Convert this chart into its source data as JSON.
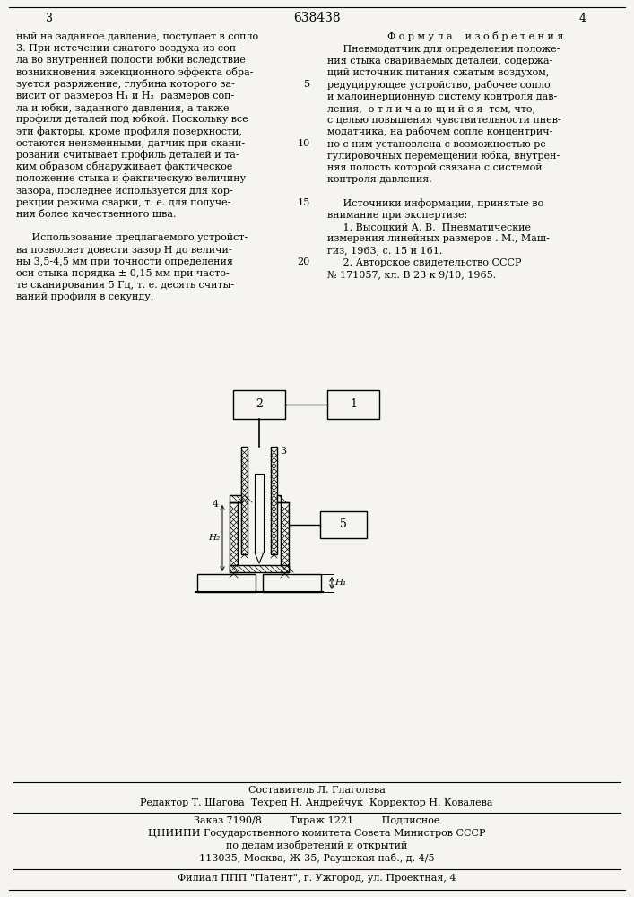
{
  "bg_color": "#f5f4f0",
  "title_number": "638438",
  "page_numbers": [
    "3",
    "4"
  ],
  "left_text": [
    "ный на заданное давление, поступает в сопло",
    "3. При истечении сжатого воздуха из соп-",
    "ла во внутренней полости юбки вследствие",
    "возникновения эжекционного эффекта обра-",
    "зуется разряжение, глубина которого за-",
    "висит от размеров H₁ и H₂  размеров соп-",
    "ла и юбки, заданного давления, а также",
    "профиля деталей под юбкой. Поскольку все",
    "эти факторы, кроме профиля поверхности,",
    "остаются неизменными, датчик при скани-",
    "ровании считывает профиль деталей и та-",
    "ким образом обнаруживает фактическое",
    "положение стыка и фактическую величину",
    "зазора, последнее используется для кор-",
    "рекции режима сварки, т. е. для получе-",
    "ния более качественного шва.",
    "",
    "     Использование предлагаемого устройст-",
    "ва позволяет довести зазор H до величи-",
    "ны 3,5-4,5 мм при точности определения",
    "оси стыка порядка ± 0,15 мм при часто-",
    "те сканирования 5 Гц, т. е. десять считы-",
    "ваний профиля в секунду."
  ],
  "right_heading": "Ф о р м у л а    и з о б р е т е н и я",
  "right_text": [
    "     Пневмодатчик для определения положе-",
    "ния стыка свариваемых деталей, содержа-",
    "щий источник питания сжатым воздухом,",
    "редуцирующее устройство, рабочее сопло",
    "и малоинерционную систему контроля дав-",
    "ления,  о т л и ч а ю щ и й с я  тем, что,",
    "с целью повышения чувствительности пнев-",
    "модатчика, на рабочем сопле концентрич-",
    "но с ним установлена с возможностью ре-",
    "гулировочных перемещений юбка, внутрен-",
    "няя полость которой связана с системой",
    "контроля давления.",
    "",
    "     Источники информации, принятые во",
    "внимание при экспертизе:",
    "     1. Высоцкий А. В.  Пневматические",
    "измерения линейных размеров . М., Маш-",
    "гиз, 1963, с. 15 и 161.",
    "     2. Авторское свидетельство СССР",
    "№ 171057, кл. В 23 к 9/10, 1965."
  ],
  "footer_line1": "Составитель Л. Глаголева",
  "footer_line2": "Редактор Т. Шагова  Техред Н. Андрейчук  Корректор Н. Ковалева",
  "footer_line3": "Заказ 7190/8         Тираж 1221         Подписное",
  "footer_line4": "ЦНИИПИ Государственного комитета Совета Министров СССР",
  "footer_line5": "по делам изобретений и открытий",
  "footer_line6": "113035, Москва, Ж-35, Раушская наб., д. 4/5",
  "footer_line7": "Филиал ППП \"Патент\", г. Ужгород, ул. Проектная, 4"
}
